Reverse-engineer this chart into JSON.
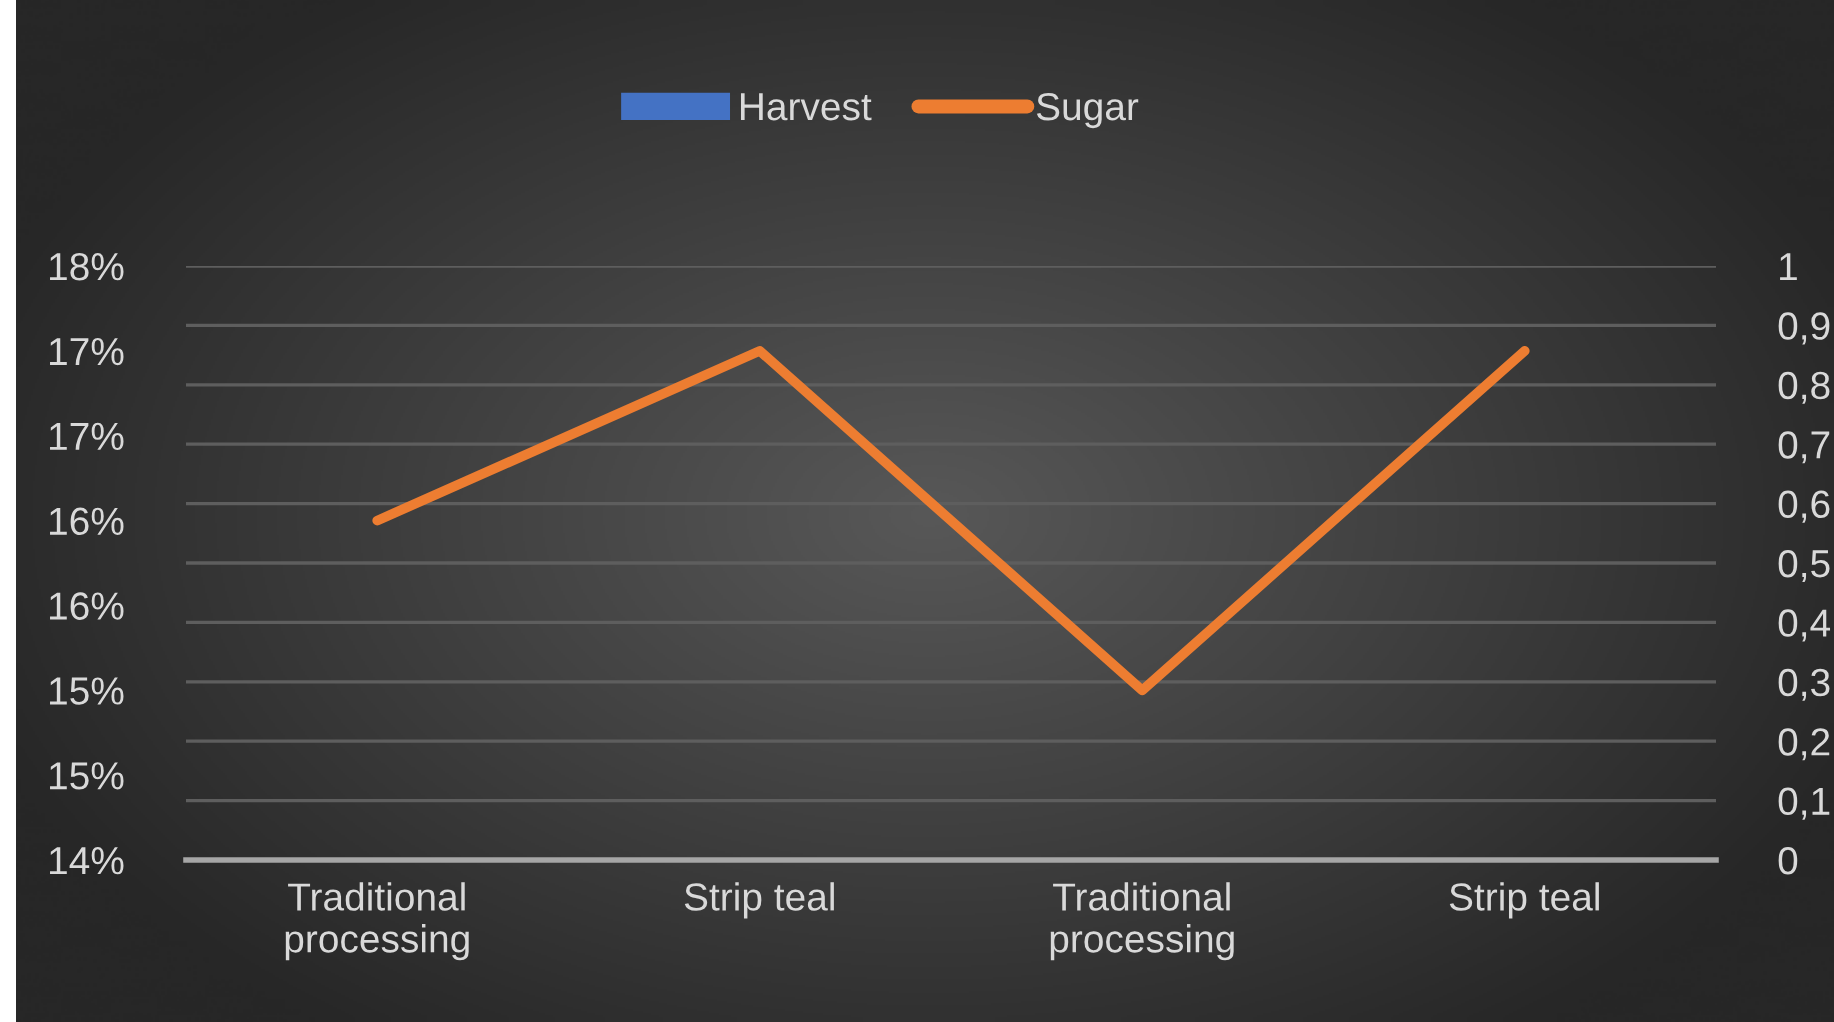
{
  "chart_data": {
    "type": "line",
    "categories": [
      "Traditional processing",
      "Strip teal",
      "Traditional processing",
      "Strip teal"
    ],
    "series": [
      {
        "name": "Harvest",
        "type": "bar",
        "axis": "y2",
        "color": "#4472c4",
        "values": [
          null,
          null,
          null,
          null
        ]
      },
      {
        "name": "Sugar",
        "color": "#ed7d31",
        "values": [
          16.0,
          17.0,
          15.0,
          17.0
        ]
      }
    ],
    "ylim": [
      14,
      17.5
    ],
    "yticks": [
      {
        "value": 14,
        "label": "14%"
      },
      {
        "value": 14.5,
        "label": "15%"
      },
      {
        "value": 15,
        "label": "15%"
      },
      {
        "value": 15.5,
        "label": "16%"
      },
      {
        "value": 16,
        "label": "16%"
      },
      {
        "value": 16.5,
        "label": "17%"
      },
      {
        "value": 17,
        "label": "17%"
      },
      {
        "value": 17.5,
        "label": "18%"
      }
    ],
    "y2lim": [
      0,
      1
    ],
    "y2ticks": [
      0,
      {
        "value": 0.1,
        "label": "0,1"
      },
      {
        "value": 0.2,
        "label": "0,2"
      },
      {
        "value": 0.3,
        "label": "0,3"
      },
      {
        "value": 0.4,
        "label": "0,4"
      },
      {
        "value": 0.5,
        "label": "0,5"
      },
      {
        "value": 0.6,
        "label": "0,6"
      },
      {
        "value": 0.7,
        "label": "0,7"
      },
      {
        "value": 0.8,
        "label": "0,8"
      },
      {
        "value": 0.9,
        "label": "0,9"
      },
      1
    ],
    "grid": "y2",
    "legend": "top",
    "marker": "none",
    "line_style": "solid"
  }
}
